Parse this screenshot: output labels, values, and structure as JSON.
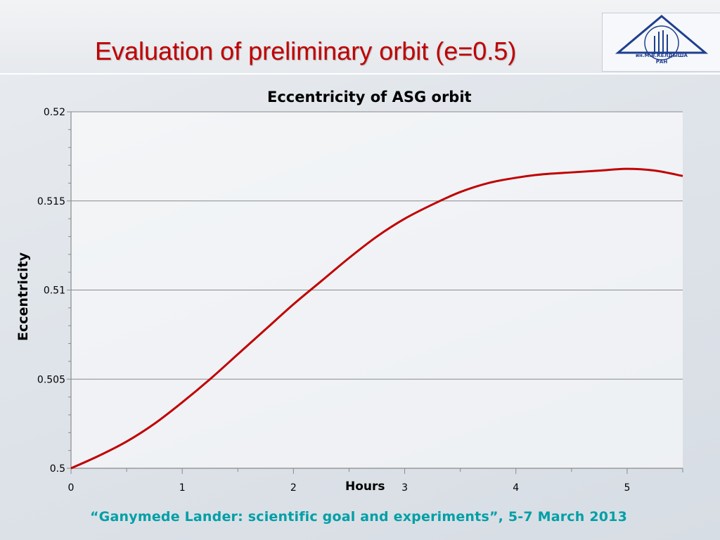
{
  "slide": {
    "title": "Evaluation of preliminary orbit",
    "title_suffix": "(e=0.5)",
    "footer": "“Ganymede Lander: scientific goal and experiments”, 5-7 March 2013",
    "logo_text_top": "ОРДЕНА ЛЕНИНА",
    "logo_text_mid": "ин.М.В.КЕЛДЫША",
    "logo_text_bottom": "РАН",
    "title_color": "#c00000",
    "footer_color": "#009fa6"
  },
  "chart_data": {
    "type": "line",
    "title": "Eccentricity of ASG orbit",
    "xlabel": "Hours",
    "ylabel": "Eccentricity",
    "xlim": [
      0,
      5.5
    ],
    "ylim": [
      0.5,
      0.52
    ],
    "x_ticks": [
      "0",
      "1",
      "2",
      "3",
      "4",
      "5"
    ],
    "y_ticks": [
      "0.5",
      "0.505",
      "0.51",
      "0.515",
      "0.52"
    ],
    "grid": "horizontal",
    "legend": "none",
    "series": [
      {
        "color": "#c00000",
        "x": [
          0,
          0.25,
          0.5,
          0.75,
          1.0,
          1.25,
          1.5,
          1.75,
          2.0,
          2.25,
          2.5,
          2.75,
          3.0,
          3.25,
          3.5,
          3.75,
          4.0,
          4.25,
          4.5,
          4.75,
          5.0,
          5.25,
          5.5
        ],
        "y": [
          0.5,
          0.5007,
          0.5015,
          0.5025,
          0.5037,
          0.505,
          0.5064,
          0.5078,
          0.5092,
          0.5105,
          0.5118,
          0.513,
          0.514,
          0.5148,
          0.5155,
          0.516,
          0.5163,
          0.5165,
          0.5166,
          0.5167,
          0.5168,
          0.5167,
          0.5164
        ]
      }
    ]
  }
}
